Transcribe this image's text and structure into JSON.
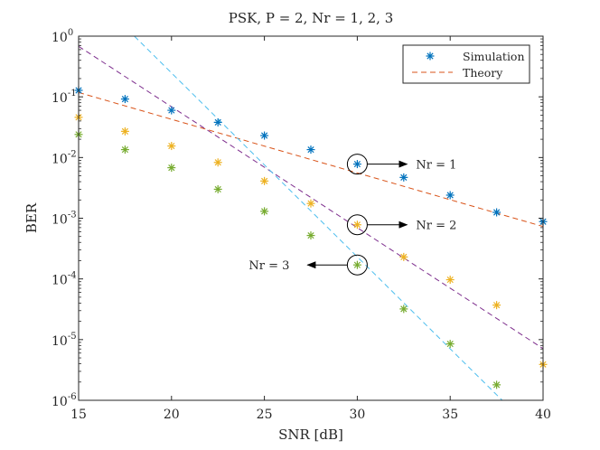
{
  "chart_data": {
    "type": "scatter",
    "title": "PSK, P = 2, Nr = 1, 2, 3",
    "xlabel": "SNR [dB]",
    "ylabel": "BER",
    "xlim": [
      15,
      40
    ],
    "ylim_log10": [
      -6,
      0
    ],
    "yscale": "log",
    "grid": false,
    "xticks": [
      15,
      20,
      25,
      30,
      35,
      40
    ],
    "xtick_labels": [
      "15",
      "20",
      "25",
      "30",
      "35",
      "40"
    ],
    "yticks_log10": [
      0,
      -1,
      -2,
      -3,
      -4,
      -5,
      -6
    ],
    "ytick_labels": [
      {
        "base": "10",
        "exp": "0"
      },
      {
        "base": "10",
        "exp": "-1"
      },
      {
        "base": "10",
        "exp": "-2"
      },
      {
        "base": "10",
        "exp": "-3"
      },
      {
        "base": "10",
        "exp": "-4"
      },
      {
        "base": "10",
        "exp": "-5"
      },
      {
        "base": "10",
        "exp": "-6"
      }
    ],
    "legend": {
      "position": "top-right",
      "entries": [
        {
          "label": "Simulation",
          "style": "asterisk",
          "color": "#0072BD"
        },
        {
          "label": "Theory",
          "style": "dashed",
          "color": "#D95319"
        }
      ]
    },
    "series": [
      {
        "name": "Simulation Nr = 1",
        "kind": "markers",
        "color": "#0072BD",
        "x": [
          15,
          17.5,
          20,
          22.5,
          25,
          27.5,
          30,
          32.5,
          35,
          37.5,
          40
        ],
        "y": [
          0.128,
          0.092,
          0.06,
          0.038,
          0.023,
          0.0135,
          0.0078,
          0.0047,
          0.0024,
          0.00125,
          0.00088
        ]
      },
      {
        "name": "Simulation Nr = 2",
        "kind": "markers",
        "color": "#EDB120",
        "x": [
          15,
          17.5,
          20,
          22.5,
          25,
          27.5,
          30,
          32.5,
          35,
          37.5,
          40
        ],
        "y": [
          0.046,
          0.027,
          0.0155,
          0.0083,
          0.0041,
          0.00175,
          0.00078,
          0.00023,
          9.7e-05,
          3.7e-05,
          3.9e-06
        ]
      },
      {
        "name": "Simulation Nr = 3",
        "kind": "markers",
        "color": "#77AC30",
        "x": [
          15,
          17.5,
          20,
          22.5,
          25,
          27.5,
          30,
          32.5,
          35,
          37.5
        ],
        "y": [
          0.024,
          0.0135,
          0.0068,
          0.003,
          0.0013,
          0.00052,
          0.00017,
          3.2e-05,
          8.5e-06,
          1.8e-06
        ]
      },
      {
        "name": "Theory Nr = 1",
        "kind": "dashed-line",
        "color": "#D95319",
        "x": [
          15,
          40
        ],
        "y": [
          0.118,
          0.00073
        ]
      },
      {
        "name": "Theory Nr = 2",
        "kind": "dashed-line",
        "color": "#7E2F8E",
        "x": [
          15,
          40
        ],
        "y": [
          0.68,
          7.1e-06
        ]
      },
      {
        "name": "Theory Nr = 3",
        "kind": "dashed-line",
        "color": "#4DBEEE",
        "x": [
          18.0,
          37.8
        ],
        "y": [
          1.0,
          1e-06
        ]
      }
    ],
    "annotations": [
      {
        "text": "Nr = 1",
        "circle_at": [
          30,
          0.0078
        ],
        "arrow": "right"
      },
      {
        "text": "Nr = 2",
        "circle_at": [
          30,
          0.00078
        ],
        "arrow": "right"
      },
      {
        "text": "Nr = 3",
        "circle_at": [
          30,
          0.00017
        ],
        "arrow": "left"
      }
    ]
  }
}
